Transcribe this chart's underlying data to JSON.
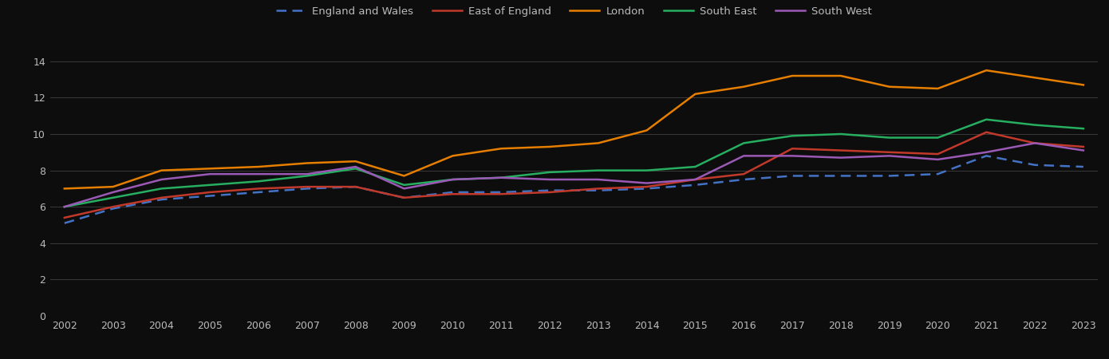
{
  "years": [
    2002,
    2003,
    2004,
    2005,
    2006,
    2007,
    2008,
    2009,
    2010,
    2011,
    2012,
    2013,
    2014,
    2015,
    2016,
    2017,
    2018,
    2019,
    2020,
    2021,
    2022,
    2023
  ],
  "series": {
    "England and Wales": {
      "values": [
        5.1,
        5.9,
        6.4,
        6.6,
        6.8,
        7.0,
        7.1,
        6.5,
        6.8,
        6.8,
        6.9,
        6.9,
        7.0,
        7.2,
        7.5,
        7.7,
        7.7,
        7.7,
        7.8,
        8.8,
        8.3,
        8.2
      ],
      "color": "#4472c4",
      "linestyle": "dashed",
      "linewidth": 1.8,
      "zorder": 3
    },
    "East of England": {
      "values": [
        5.4,
        6.0,
        6.5,
        6.8,
        7.0,
        7.1,
        7.1,
        6.5,
        6.7,
        6.7,
        6.8,
        7.0,
        7.1,
        7.5,
        7.8,
        9.2,
        9.1,
        9.0,
        8.9,
        10.1,
        9.5,
        9.3
      ],
      "color": "#c0392b",
      "linestyle": "solid",
      "linewidth": 1.8,
      "zorder": 3
    },
    "London": {
      "values": [
        7.0,
        7.1,
        8.0,
        8.1,
        8.2,
        8.4,
        8.5,
        7.7,
        8.8,
        9.2,
        9.3,
        9.5,
        10.2,
        12.2,
        12.6,
        13.2,
        13.2,
        12.6,
        12.5,
        13.5,
        13.1,
        12.7
      ],
      "color": "#e67e00",
      "linestyle": "solid",
      "linewidth": 1.8,
      "zorder": 4
    },
    "South East": {
      "values": [
        6.0,
        6.5,
        7.0,
        7.2,
        7.4,
        7.7,
        8.1,
        7.2,
        7.5,
        7.6,
        7.9,
        8.0,
        8.0,
        8.2,
        9.5,
        9.9,
        10.0,
        9.8,
        9.8,
        10.8,
        10.5,
        10.3
      ],
      "color": "#27ae60",
      "linestyle": "solid",
      "linewidth": 1.8,
      "zorder": 3
    },
    "South West": {
      "values": [
        6.0,
        6.8,
        7.5,
        7.8,
        7.8,
        7.8,
        8.2,
        7.0,
        7.5,
        7.6,
        7.5,
        7.5,
        7.3,
        7.5,
        8.8,
        8.8,
        8.7,
        8.8,
        8.6,
        9.0,
        9.5,
        9.1
      ],
      "color": "#9b59b6",
      "linestyle": "solid",
      "linewidth": 1.8,
      "zorder": 3
    }
  },
  "ylim": [
    0,
    15
  ],
  "yticks": [
    0,
    2,
    4,
    6,
    8,
    10,
    12,
    14
  ],
  "background_color": "#0d0d0d",
  "grid_color": "#3a3a3a",
  "text_color": "#bbbbbb",
  "legend_order": [
    "England and Wales",
    "East of England",
    "London",
    "South East",
    "South West"
  ]
}
